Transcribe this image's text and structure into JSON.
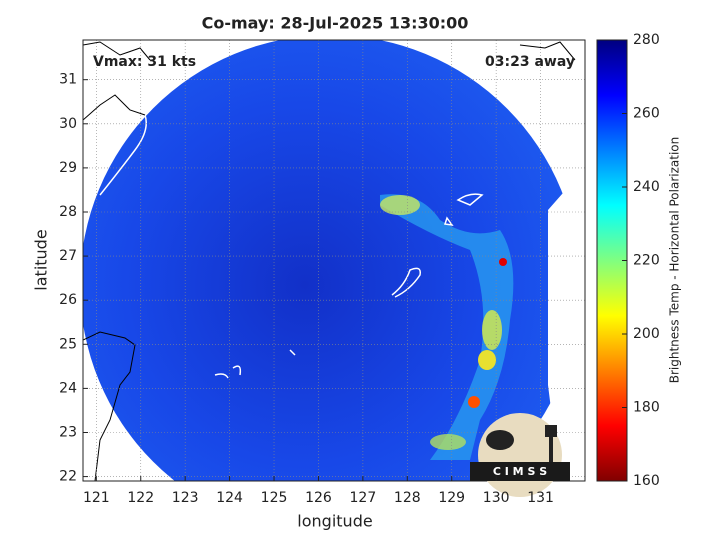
{
  "map": {
    "title": "Co-may: 28-Jul-2025 13:30:00",
    "annotation_left": "Vmax: 31 kts",
    "annotation_right": "03:23 away",
    "xlabel": "longitude",
    "ylabel": "latitude",
    "xlim": [
      120.7,
      132
    ],
    "ylim": [
      21.9,
      31.9
    ],
    "xticks": [
      121,
      122,
      123,
      124,
      125,
      126,
      127,
      128,
      129,
      130,
      131
    ],
    "yticks": [
      22,
      23,
      24,
      25,
      26,
      27,
      28,
      29,
      30,
      31
    ],
    "grid": true,
    "colorbar": {
      "label": "Brightness Temp - Horizontal Polarization",
      "clim": [
        160,
        280
      ],
      "ticks": [
        160,
        180,
        200,
        220,
        240,
        260,
        280
      ],
      "colormap": [
        "#800000",
        "#ff0000",
        "#ff8000",
        "#ffff00",
        "#80ff80",
        "#00ffff",
        "#0080ff",
        "#0000ff",
        "#000080"
      ]
    },
    "logo": "C I M S S"
  }
}
